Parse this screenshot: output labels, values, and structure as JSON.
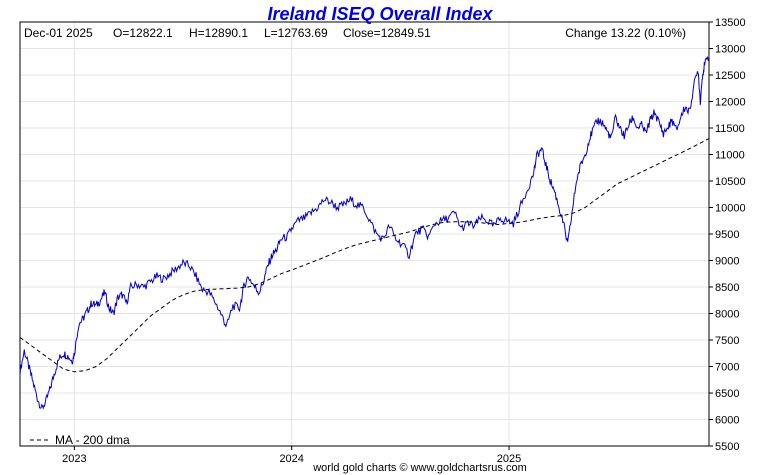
{
  "chart_data": {
    "type": "line",
    "title": "Ireland ISEQ Overall Index",
    "header": {
      "date": "Dec-01  2025",
      "open": "O=12822.1",
      "high": "H=12890.1",
      "low": "L=12763.69",
      "close": "Close=12849.51",
      "change": "Change 13.22 (0.10%)"
    },
    "ylim": [
      5500,
      13500
    ],
    "y_ticks": [
      "5500",
      "6000",
      "6500",
      "7000",
      "7500",
      "8000",
      "8500",
      "9000",
      "9500",
      "10000",
      "10500",
      "11000",
      "11500",
      "12000",
      "12500",
      "13000",
      "13500"
    ],
    "xlim": [
      2022.75,
      2025.92
    ],
    "x_ticks": [
      {
        "label": "2023",
        "value": 2023.0
      },
      {
        "label": "2024",
        "value": 2024.0
      },
      {
        "label": "2025",
        "value": 2025.0
      }
    ],
    "grid": true,
    "legend_placement": "bottom-left",
    "legend": "MA - 200 dma",
    "credit": "world gold charts © www.goldchartsrus.com",
    "series": [
      {
        "kind": "price",
        "color": "#0000cc",
        "points": [
          [
            2022.75,
            6900
          ],
          [
            2022.77,
            7300
          ],
          [
            2022.79,
            7000
          ],
          [
            2022.81,
            6700
          ],
          [
            2022.83,
            6400
          ],
          [
            2022.85,
            6200
          ],
          [
            2022.87,
            6350
          ],
          [
            2022.89,
            6600
          ],
          [
            2022.91,
            6900
          ],
          [
            2022.93,
            7150
          ],
          [
            2022.95,
            7250
          ],
          [
            2022.97,
            7200
          ],
          [
            2022.99,
            7100
          ],
          [
            2023.0,
            7250
          ],
          [
            2023.02,
            7800
          ],
          [
            2023.04,
            7900
          ],
          [
            2023.06,
            8050
          ],
          [
            2023.08,
            8200
          ],
          [
            2023.1,
            8150
          ],
          [
            2023.12,
            8250
          ],
          [
            2023.14,
            8400
          ],
          [
            2023.16,
            8100
          ],
          [
            2023.18,
            8000
          ],
          [
            2023.2,
            8300
          ],
          [
            2023.22,
            8350
          ],
          [
            2023.24,
            8200
          ],
          [
            2023.26,
            8500
          ],
          [
            2023.29,
            8550
          ],
          [
            2023.32,
            8500
          ],
          [
            2023.35,
            8600
          ],
          [
            2023.38,
            8700
          ],
          [
            2023.41,
            8650
          ],
          [
            2023.44,
            8750
          ],
          [
            2023.47,
            8850
          ],
          [
            2023.5,
            8950
          ],
          [
            2023.53,
            8900
          ],
          [
            2023.56,
            8700
          ],
          [
            2023.59,
            8450
          ],
          [
            2023.62,
            8400
          ],
          [
            2023.65,
            8200
          ],
          [
            2023.68,
            7950
          ],
          [
            2023.7,
            7750
          ],
          [
            2023.73,
            8150
          ],
          [
            2023.76,
            8100
          ],
          [
            2023.78,
            8500
          ],
          [
            2023.8,
            8700
          ],
          [
            2023.83,
            8500
          ],
          [
            2023.85,
            8400
          ],
          [
            2023.87,
            8600
          ],
          [
            2023.89,
            8900
          ],
          [
            2023.91,
            9100
          ],
          [
            2023.93,
            9200
          ],
          [
            2023.95,
            9400
          ],
          [
            2023.98,
            9450
          ],
          [
            2024.0,
            9600
          ],
          [
            2024.03,
            9750
          ],
          [
            2024.06,
            9800
          ],
          [
            2024.09,
            9900
          ],
          [
            2024.12,
            10000
          ],
          [
            2024.15,
            10150
          ],
          [
            2024.18,
            10100
          ],
          [
            2024.21,
            10000
          ],
          [
            2024.24,
            10050
          ],
          [
            2024.27,
            10150
          ],
          [
            2024.3,
            10050
          ],
          [
            2024.33,
            10000
          ],
          [
            2024.36,
            9750
          ],
          [
            2024.39,
            9500
          ],
          [
            2024.42,
            9400
          ],
          [
            2024.45,
            9650
          ],
          [
            2024.48,
            9400
          ],
          [
            2024.51,
            9300
          ],
          [
            2024.54,
            9100
          ],
          [
            2024.57,
            9500
          ],
          [
            2024.6,
            9600
          ],
          [
            2024.63,
            9450
          ],
          [
            2024.66,
            9700
          ],
          [
            2024.69,
            9750
          ],
          [
            2024.72,
            9800
          ],
          [
            2024.75,
            9900
          ],
          [
            2024.78,
            9600
          ],
          [
            2024.81,
            9700
          ],
          [
            2024.84,
            9650
          ],
          [
            2024.87,
            9800
          ],
          [
            2024.9,
            9750
          ],
          [
            2024.93,
            9650
          ],
          [
            2024.96,
            9800
          ],
          [
            2024.99,
            9750
          ],
          [
            2025.02,
            9700
          ],
          [
            2025.05,
            10000
          ],
          [
            2025.08,
            10300
          ],
          [
            2025.11,
            10600
          ],
          [
            2025.13,
            11000
          ],
          [
            2025.15,
            11100
          ],
          [
            2025.17,
            10800
          ],
          [
            2025.19,
            10500
          ],
          [
            2025.21,
            10300
          ],
          [
            2025.23,
            10000
          ],
          [
            2025.25,
            9700
          ],
          [
            2025.27,
            9300
          ],
          [
            2025.29,
            9900
          ],
          [
            2025.31,
            10500
          ],
          [
            2025.33,
            10800
          ],
          [
            2025.35,
            11000
          ],
          [
            2025.37,
            11300
          ],
          [
            2025.39,
            11500
          ],
          [
            2025.41,
            11650
          ],
          [
            2025.43,
            11600
          ],
          [
            2025.45,
            11450
          ],
          [
            2025.47,
            11300
          ],
          [
            2025.49,
            11700
          ],
          [
            2025.51,
            11500
          ],
          [
            2025.53,
            11350
          ],
          [
            2025.55,
            11550
          ],
          [
            2025.57,
            11700
          ],
          [
            2025.59,
            11500
          ],
          [
            2025.61,
            11550
          ],
          [
            2025.63,
            11400
          ],
          [
            2025.65,
            11650
          ],
          [
            2025.67,
            11800
          ],
          [
            2025.69,
            11600
          ],
          [
            2025.71,
            11400
          ],
          [
            2025.73,
            11500
          ],
          [
            2025.75,
            11650
          ],
          [
            2025.77,
            11450
          ],
          [
            2025.79,
            11700
          ],
          [
            2025.81,
            11900
          ],
          [
            2025.83,
            11800
          ],
          [
            2025.85,
            12300
          ],
          [
            2025.87,
            12600
          ],
          [
            2025.88,
            12000
          ],
          [
            2025.89,
            12500
          ],
          [
            2025.9,
            12700
          ],
          [
            2025.92,
            12850
          ]
        ]
      },
      {
        "kind": "ma",
        "name": "MA - 200 dma",
        "color": "#000000",
        "points": [
          [
            2022.75,
            7550
          ],
          [
            2022.8,
            7400
          ],
          [
            2022.85,
            7250
          ],
          [
            2022.9,
            7100
          ],
          [
            2022.95,
            6950
          ],
          [
            2023.0,
            6900
          ],
          [
            2023.05,
            6920
          ],
          [
            2023.1,
            7000
          ],
          [
            2023.15,
            7150
          ],
          [
            2023.2,
            7350
          ],
          [
            2023.25,
            7550
          ],
          [
            2023.3,
            7750
          ],
          [
            2023.35,
            7950
          ],
          [
            2023.4,
            8100
          ],
          [
            2023.45,
            8250
          ],
          [
            2023.5,
            8350
          ],
          [
            2023.55,
            8420
          ],
          [
            2023.6,
            8450
          ],
          [
            2023.65,
            8460
          ],
          [
            2023.7,
            8470
          ],
          [
            2023.75,
            8480
          ],
          [
            2023.8,
            8500
          ],
          [
            2023.85,
            8560
          ],
          [
            2023.9,
            8650
          ],
          [
            2023.95,
            8750
          ],
          [
            2024.0,
            8820
          ],
          [
            2024.05,
            8900
          ],
          [
            2024.1,
            8980
          ],
          [
            2024.15,
            9060
          ],
          [
            2024.2,
            9150
          ],
          [
            2024.25,
            9230
          ],
          [
            2024.3,
            9300
          ],
          [
            2024.35,
            9350
          ],
          [
            2024.4,
            9400
          ],
          [
            2024.45,
            9450
          ],
          [
            2024.5,
            9500
          ],
          [
            2024.55,
            9550
          ],
          [
            2024.6,
            9620
          ],
          [
            2024.65,
            9680
          ],
          [
            2024.7,
            9720
          ],
          [
            2024.75,
            9730
          ],
          [
            2024.8,
            9730
          ],
          [
            2024.85,
            9720
          ],
          [
            2024.9,
            9700
          ],
          [
            2024.95,
            9680
          ],
          [
            2025.0,
            9700
          ],
          [
            2025.05,
            9720
          ],
          [
            2025.1,
            9760
          ],
          [
            2025.15,
            9800
          ],
          [
            2025.2,
            9830
          ],
          [
            2025.25,
            9850
          ],
          [
            2025.3,
            9900
          ],
          [
            2025.35,
            10000
          ],
          [
            2025.4,
            10150
          ],
          [
            2025.45,
            10300
          ],
          [
            2025.5,
            10450
          ],
          [
            2025.55,
            10550
          ],
          [
            2025.6,
            10650
          ],
          [
            2025.65,
            10750
          ],
          [
            2025.7,
            10850
          ],
          [
            2025.75,
            10950
          ],
          [
            2025.8,
            11050
          ],
          [
            2025.85,
            11150
          ],
          [
            2025.92,
            11300
          ]
        ]
      }
    ]
  }
}
